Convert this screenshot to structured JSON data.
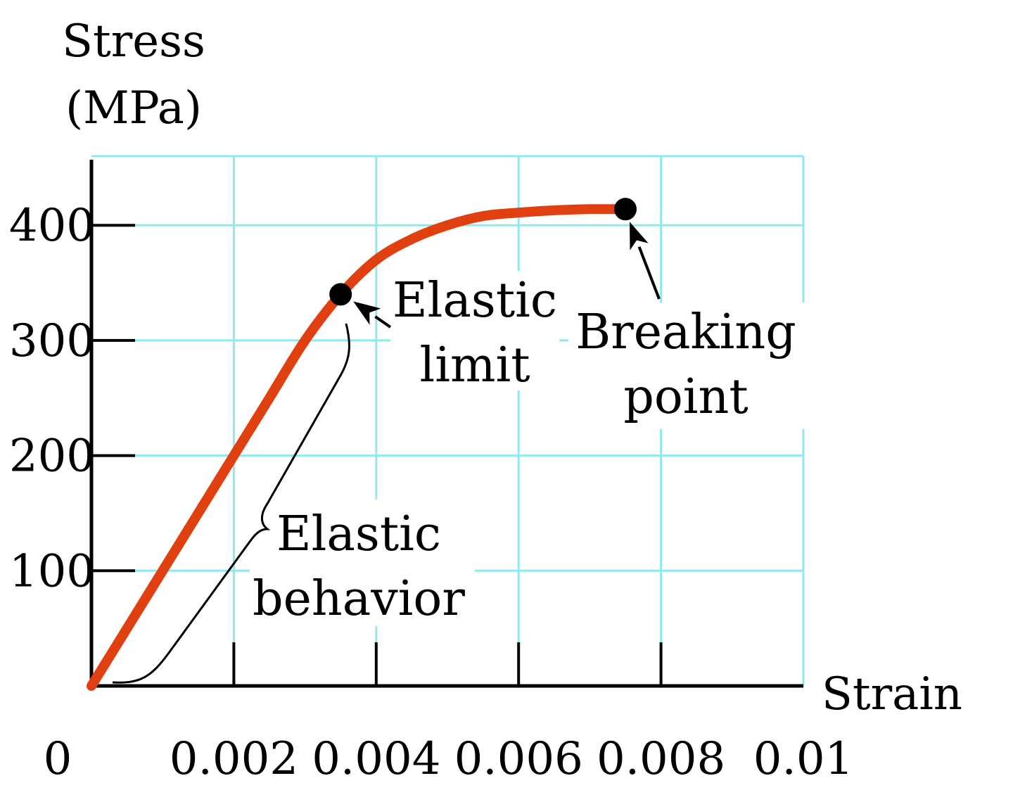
{
  "chart_data": {
    "type": "line",
    "ylabel_line1": "Stress",
    "ylabel_line2": "(MPa)",
    "xlabel": "Strain",
    "xlim": [
      0,
      0.01
    ],
    "ylim": [
      0,
      460
    ],
    "grid": true,
    "x_ticks": [
      0,
      0.002,
      0.004,
      0.006,
      0.008,
      0.01
    ],
    "x_tick_labels": [
      "0",
      "0.002",
      "0.004",
      "0.006",
      "0.008",
      "0.01"
    ],
    "y_ticks": [
      100,
      200,
      300,
      400
    ],
    "y_tick_labels": [
      "100",
      "200",
      "300",
      "400"
    ],
    "series": [
      {
        "x": [
          0,
          0.001,
          0.002,
          0.0025,
          0.003,
          0.0035,
          0.004,
          0.0045,
          0.005,
          0.0055,
          0.006,
          0.0065,
          0.007,
          0.0075
        ],
        "y": [
          0,
          100,
          200,
          250,
          300,
          340,
          370,
          388,
          400,
          408,
          411,
          413,
          414,
          414
        ],
        "color": "#e04010"
      }
    ],
    "points": [
      {
        "x": 0.0035,
        "y": 340,
        "label_line1": "Elastic",
        "label_line2": "limit"
      },
      {
        "x": 0.0075,
        "y": 414,
        "label_line1": "Breaking",
        "label_line2": "point"
      }
    ],
    "brace_label_line1": "Elastic",
    "brace_label_line2": "behavior"
  }
}
